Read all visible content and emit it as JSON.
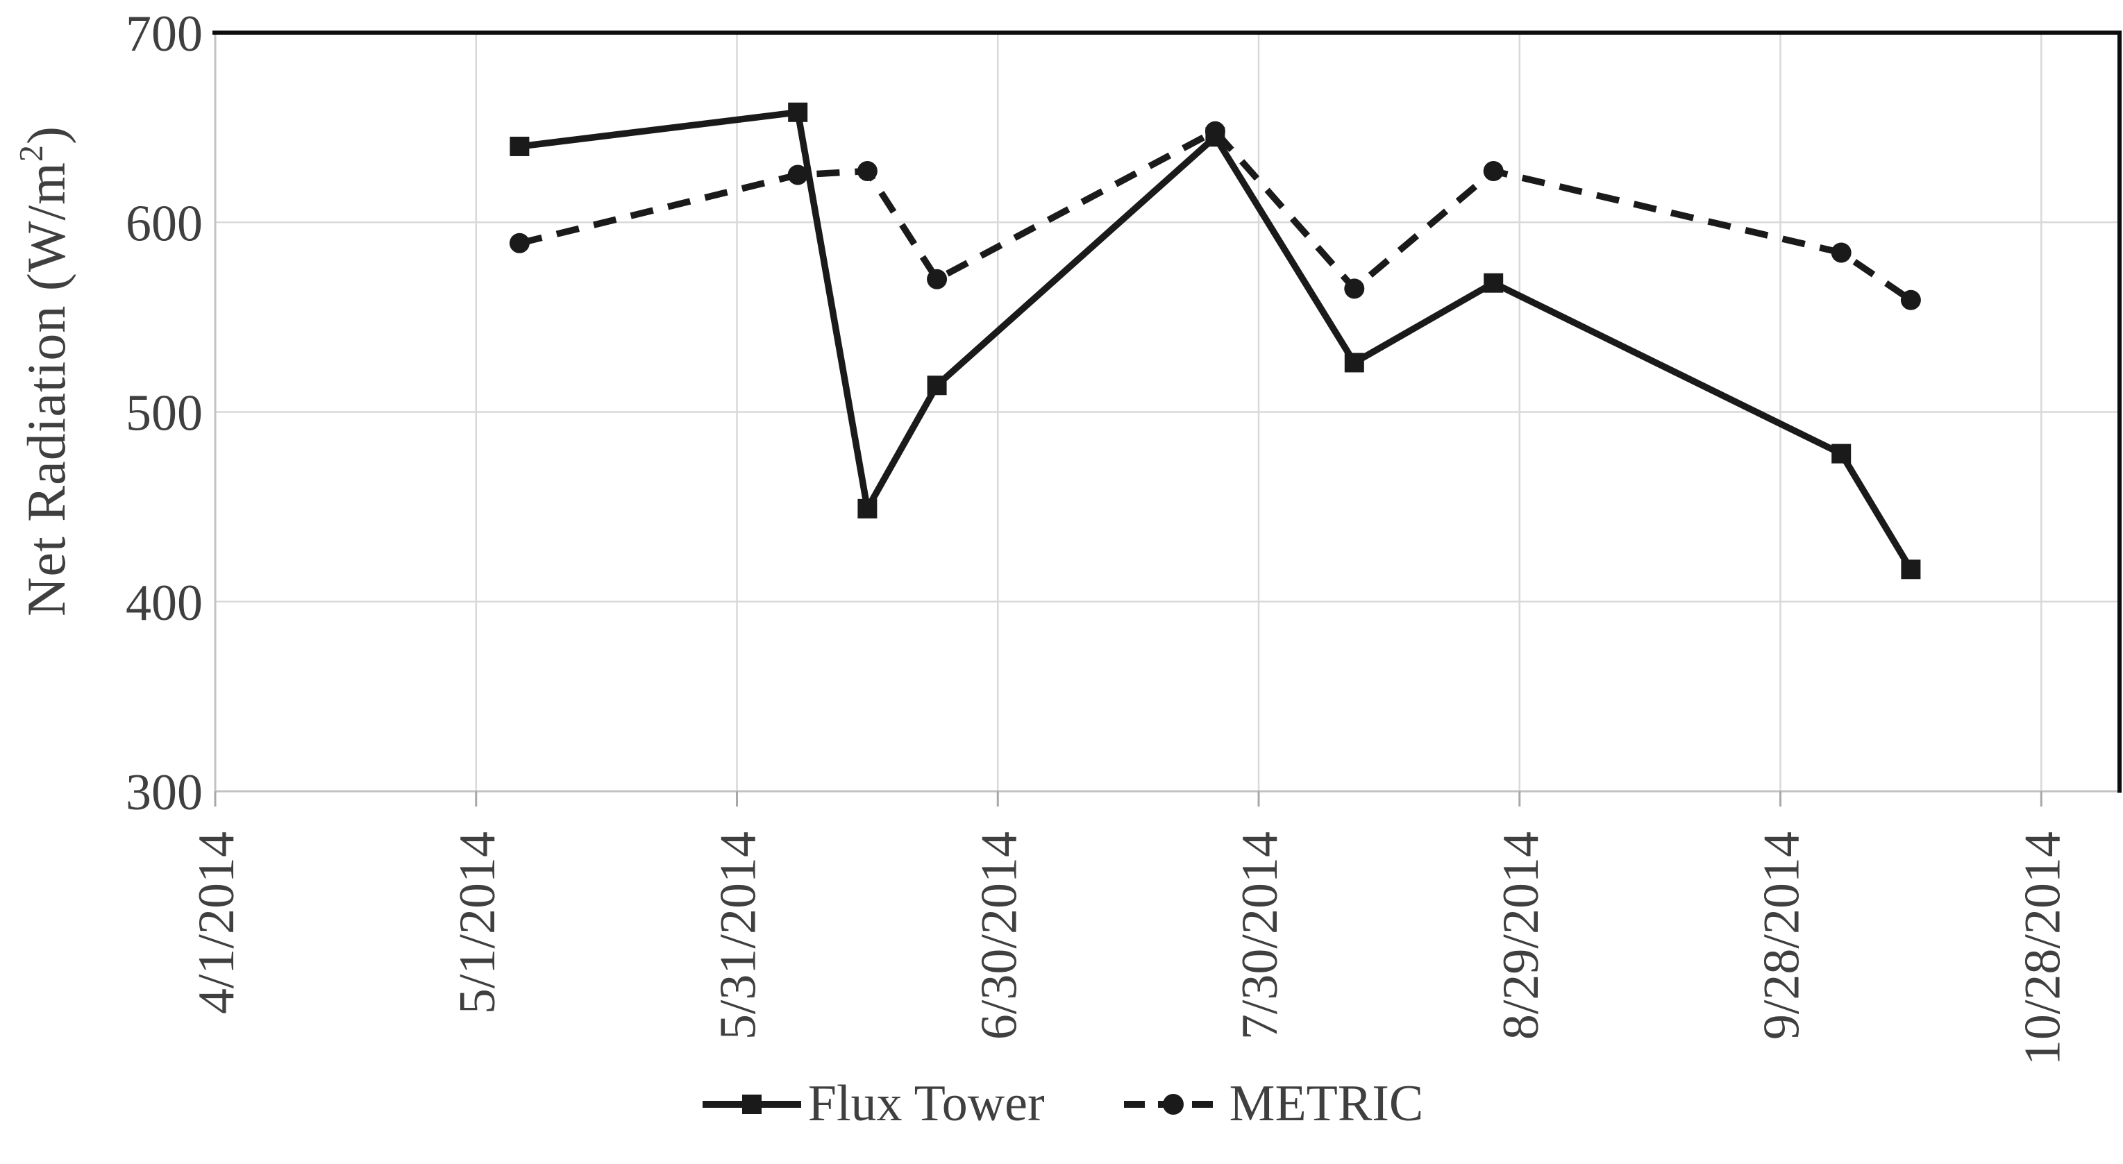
{
  "colors": {
    "series_line": "#1a1a1a",
    "text": "#3f3f3f",
    "gridline": "#d9d9d9",
    "axis_line": "#c3c3c3",
    "tick_stub": "#a8a8a8",
    "plot_border": "#0d0d0d",
    "background": "#ffffff"
  },
  "legend": {
    "position": "bottom-center"
  },
  "chart_data": {
    "type": "line",
    "title": "",
    "xlabel": "",
    "ylabel": "Net Radiation (W/m²)",
    "ylabel_parts": {
      "pre": "Net Radiation (W/m",
      "sup": "2",
      "post": ")"
    },
    "ylim": [
      300,
      700
    ],
    "y_ticks": [
      300,
      400,
      500,
      600,
      700
    ],
    "grid": true,
    "legend_position": "bottom-center",
    "x_axis": {
      "start_date": "4/1/2014",
      "tick_labels": [
        "4/1/2014",
        "5/1/2014",
        "5/31/2014",
        "6/30/2014",
        "7/30/2014",
        "8/29/2014",
        "9/28/2014",
        "10/28/2014"
      ],
      "tick_days_from_start": [
        0,
        30,
        60,
        90,
        120,
        150,
        180,
        210
      ],
      "domain_days_from_start": [
        0,
        219
      ]
    },
    "point_dates": [
      "5/6/2014",
      "6/7/2014",
      "6/15/2014",
      "6/23/2014",
      "7/25/2014",
      "8/10/2014",
      "8/26/2014",
      "10/5/2014",
      "10/13/2014"
    ],
    "point_days_from_start": [
      35,
      67,
      75,
      83,
      115,
      131,
      147,
      187,
      195
    ],
    "series": [
      {
        "name": "Flux Tower",
        "line_style": "solid",
        "marker": "square",
        "color": "#1a1a1a",
        "values": [
          640,
          658,
          449,
          514,
          645,
          526,
          568,
          478,
          417
        ]
      },
      {
        "name": "METRIC",
        "line_style": "dashed",
        "marker": "circle",
        "color": "#1a1a1a",
        "values": [
          589,
          625,
          627,
          570,
          648,
          565,
          627,
          584,
          559
        ]
      }
    ]
  }
}
